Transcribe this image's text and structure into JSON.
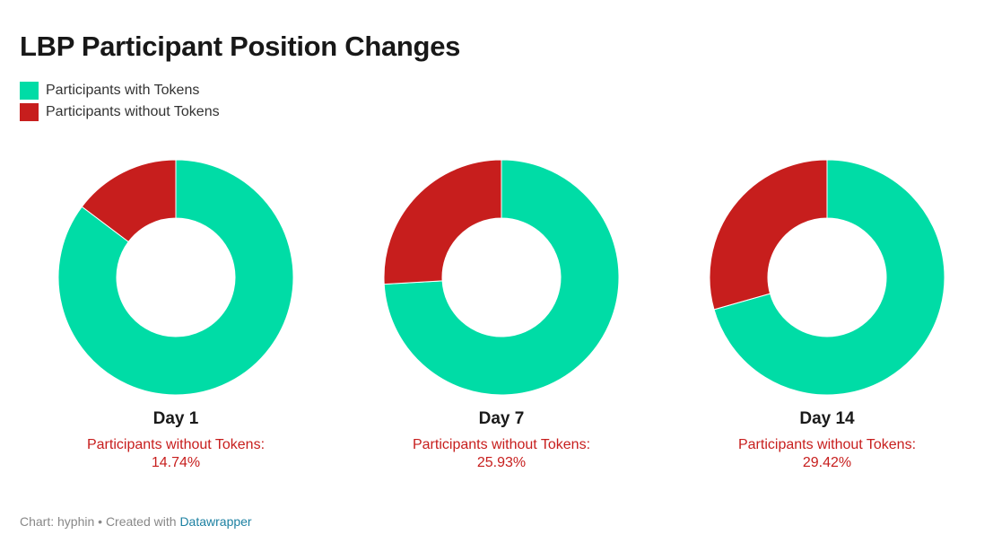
{
  "title": "LBP Participant Position Changes",
  "legend": [
    {
      "label": "Participants with Tokens",
      "color": "#00dca6"
    },
    {
      "label": "Participants without Tokens",
      "color": "#c71e1d"
    }
  ],
  "chart_data": {
    "type": "pie",
    "title": "LBP Participant Position Changes",
    "series_names": [
      "Participants with Tokens",
      "Participants without Tokens"
    ],
    "colors": [
      "#00dca6",
      "#c71e1d"
    ],
    "charts": [
      {
        "day": "Day 1",
        "caption_label": "Participants without Tokens:",
        "caption_value": "14.74%",
        "values": [
          85.26,
          14.74
        ]
      },
      {
        "day": "Day 7",
        "caption_label": "Participants without Tokens:",
        "caption_value": "25.93%",
        "values": [
          74.07,
          25.93
        ]
      },
      {
        "day": "Day 14",
        "caption_label": "Participants without Tokens:",
        "caption_value": "29.42%",
        "values": [
          70.58,
          29.42
        ]
      }
    ]
  },
  "footer": {
    "prefix": "Chart: hyphin • Created with ",
    "link": "Datawrapper"
  }
}
